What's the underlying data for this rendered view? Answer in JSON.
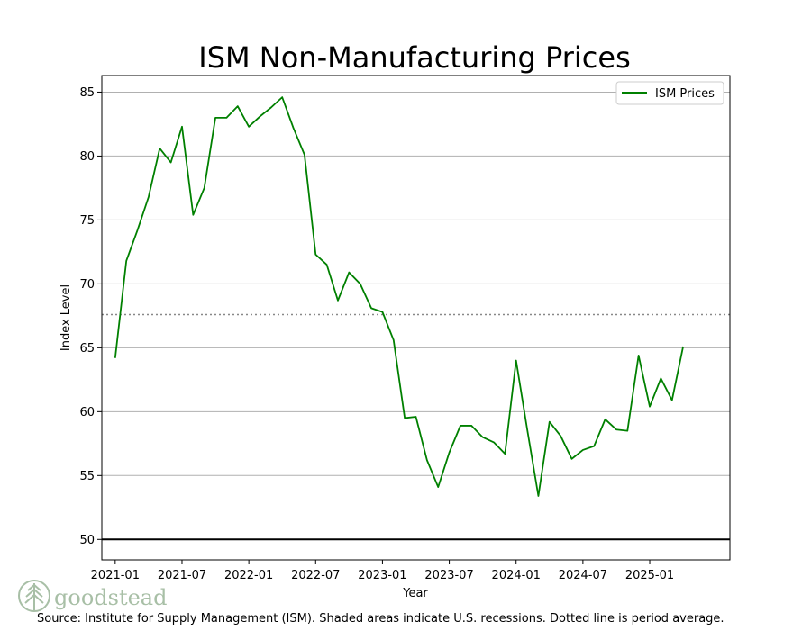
{
  "chart_data": {
    "type": "line",
    "title": "ISM Non-Manufacturing Prices",
    "xlabel": "Year",
    "ylabel": "Index Level",
    "ylim": [
      48.4,
      86.3
    ],
    "xlim": [
      2020.9,
      2025.6
    ],
    "grid": "horizontal",
    "legend_position": "top-right",
    "reference_line_value": 50,
    "period_average": 67.6,
    "x_ticks": [
      {
        "label": "2021-01",
        "value": 2021.0
      },
      {
        "label": "2021-07",
        "value": 2021.5
      },
      {
        "label": "2022-01",
        "value": 2022.0
      },
      {
        "label": "2022-07",
        "value": 2022.5
      },
      {
        "label": "2023-01",
        "value": 2023.0
      },
      {
        "label": "2023-07",
        "value": 2023.5
      },
      {
        "label": "2024-01",
        "value": 2024.0
      },
      {
        "label": "2024-07",
        "value": 2024.5
      },
      {
        "label": "2025-01",
        "value": 2025.0
      }
    ],
    "y_ticks": [
      {
        "label": "50",
        "value": 50
      },
      {
        "label": "55",
        "value": 55
      },
      {
        "label": "60",
        "value": 60
      },
      {
        "label": "65",
        "value": 65
      },
      {
        "label": "70",
        "value": 70
      },
      {
        "label": "75",
        "value": 75
      },
      {
        "label": "80",
        "value": 80
      },
      {
        "label": "85",
        "value": 85
      }
    ],
    "series": [
      {
        "name": "ISM Prices",
        "color": "#008000",
        "dates": [
          "2021-01",
          "2021-02",
          "2021-03",
          "2021-04",
          "2021-05",
          "2021-06",
          "2021-07",
          "2021-08",
          "2021-09",
          "2021-10",
          "2021-11",
          "2021-12",
          "2022-01",
          "2022-02",
          "2022-03",
          "2022-04",
          "2022-05",
          "2022-06",
          "2022-07",
          "2022-08",
          "2022-09",
          "2022-10",
          "2022-11",
          "2022-12",
          "2023-01",
          "2023-02",
          "2023-03",
          "2023-04",
          "2023-05",
          "2023-06",
          "2023-07",
          "2023-08",
          "2023-09",
          "2023-10",
          "2023-11",
          "2023-12",
          "2024-01",
          "2024-02",
          "2024-03",
          "2024-04",
          "2024-05",
          "2024-06",
          "2024-07",
          "2024-08",
          "2024-09",
          "2024-10",
          "2024-11",
          "2024-12",
          "2025-01",
          "2025-02",
          "2025-03",
          "2025-04"
        ],
        "values": [
          64.2,
          71.8,
          74.2,
          76.8,
          80.6,
          79.5,
          82.3,
          75.4,
          77.5,
          83.0,
          83.0,
          83.9,
          82.3,
          83.1,
          83.8,
          84.6,
          82.2,
          80.1,
          72.3,
          71.5,
          68.7,
          70.9,
          70.0,
          68.1,
          67.8,
          65.6,
          59.5,
          59.6,
          56.2,
          54.1,
          56.8,
          58.9,
          58.9,
          58.0,
          57.6,
          56.7,
          64.0,
          58.6,
          53.4,
          59.2,
          58.1,
          56.3,
          57.0,
          57.3,
          59.4,
          58.6,
          58.5,
          64.4,
          60.4,
          62.6,
          60.9,
          65.1
        ]
      }
    ]
  },
  "branding": {
    "logo_text": "goodstead"
  },
  "source_note": "Source:  Institute for Supply Management (ISM). Shaded areas indicate U.S. recessions. Dotted line is period average."
}
